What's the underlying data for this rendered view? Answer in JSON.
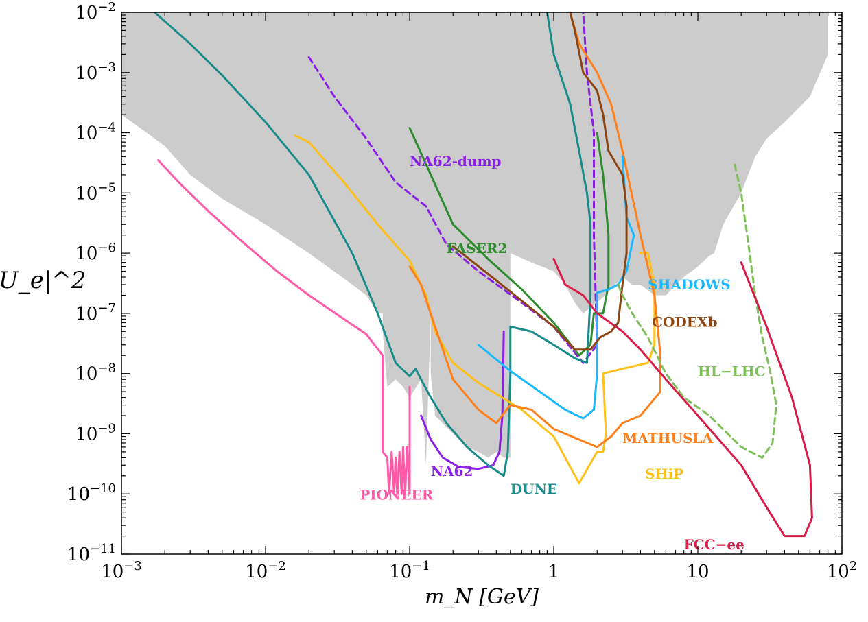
{
  "chart_data": {
    "type": "line",
    "title": "",
    "xlabel": "m_N  [GeV]",
    "ylabel": "|U_e|^2",
    "xscale": "log",
    "yscale": "log",
    "xlim": [
      0.001,
      100
    ],
    "ylim": [
      1e-11,
      0.01
    ],
    "grid": false,
    "x_ticks": [
      {
        "value": 0.001,
        "base": "10",
        "exp": "−3"
      },
      {
        "value": 0.01,
        "base": "10",
        "exp": "−2"
      },
      {
        "value": 0.1,
        "base": "10",
        "exp": "−1"
      },
      {
        "value": 1,
        "base": "1",
        "exp": ""
      },
      {
        "value": 10,
        "base": "10",
        "exp": ""
      },
      {
        "value": 100,
        "base": "10",
        "exp": "2"
      }
    ],
    "y_ticks": [
      {
        "value": 0.01,
        "base": "10",
        "exp": "−2"
      },
      {
        "value": 0.001,
        "base": "10",
        "exp": "−3"
      },
      {
        "value": 0.0001,
        "base": "10",
        "exp": "−4"
      },
      {
        "value": 1e-05,
        "base": "10",
        "exp": "−5"
      },
      {
        "value": 1e-06,
        "base": "10",
        "exp": "−6"
      },
      {
        "value": 1e-07,
        "base": "10",
        "exp": "−7"
      },
      {
        "value": 1e-08,
        "base": "10",
        "exp": "−8"
      },
      {
        "value": 1e-09,
        "base": "10",
        "exp": "−9"
      },
      {
        "value": 1e-10,
        "base": "10",
        "exp": "−10"
      },
      {
        "value": 1e-11,
        "base": "10",
        "exp": "−11"
      }
    ],
    "excluded_region": {
      "color": "#cccccc",
      "boundary": [
        [
          0.001,
          0.01
        ],
        [
          80,
          0.01
        ],
        [
          80,
          0.002
        ],
        [
          60,
          0.0004
        ],
        [
          40,
          0.00015
        ],
        [
          30,
          8e-05
        ],
        [
          25,
          4e-05
        ],
        [
          20,
          1e-05
        ],
        [
          15,
          3e-06
        ],
        [
          13,
          1e-06
        ],
        [
          12,
          9e-07
        ],
        [
          10,
          6e-07
        ],
        [
          8,
          4e-07
        ],
        [
          6,
          2e-07
        ],
        [
          5,
          2e-07
        ],
        [
          4,
          3e-07
        ],
        [
          3.5,
          3e-07
        ],
        [
          3,
          4e-07
        ],
        [
          2.5,
          2.5e-07
        ],
        [
          2,
          1.5e-07
        ],
        [
          1.6,
          1e-07
        ],
        [
          1.4,
          1.5e-07
        ],
        [
          1.2,
          3e-07
        ],
        [
          1.0,
          5e-07
        ],
        [
          0.7,
          7e-07
        ],
        [
          0.5,
          1e-06
        ],
        [
          0.5,
          2e-07
        ],
        [
          0.5,
          4e-10
        ],
        [
          0.45,
          4e-10
        ],
        [
          0.4,
          5e-10
        ],
        [
          0.35,
          4e-10
        ],
        [
          0.3,
          5e-10
        ],
        [
          0.25,
          6e-10
        ],
        [
          0.2,
          1e-09
        ],
        [
          0.15,
          2e-09
        ],
        [
          0.14,
          1e-08
        ],
        [
          0.14,
          1e-07
        ],
        [
          0.13,
          3e-10
        ],
        [
          0.12,
          8e-09
        ],
        [
          0.1,
          4e-09
        ],
        [
          0.09,
          6e-09
        ],
        [
          0.08,
          8e-09
        ],
        [
          0.07,
          6e-09
        ],
        [
          0.065,
          5e-08
        ],
        [
          0.065,
          1e-07
        ],
        [
          0.06,
          1e-07
        ],
        [
          0.05,
          2e-07
        ],
        [
          0.04,
          3e-07
        ],
        [
          0.02,
          1e-06
        ],
        [
          0.01,
          3e-06
        ],
        [
          0.005,
          8e-06
        ],
        [
          0.003,
          2e-05
        ],
        [
          0.002,
          6e-05
        ],
        [
          0.0015,
          0.0001
        ],
        [
          0.001,
          0.0002
        ],
        [
          0.001,
          0.01
        ]
      ]
    },
    "series": [
      {
        "name": "PIONEER",
        "color": "#ff5aa8",
        "dashed": false,
        "label_at": [
          0.045,
          8e-11
        ],
        "points": [
          [
            0.0018,
            3.5e-05
          ],
          [
            0.0025,
            1.5e-05
          ],
          [
            0.004,
            5e-06
          ],
          [
            0.007,
            1.5e-06
          ],
          [
            0.012,
            5e-07
          ],
          [
            0.02,
            2e-07
          ],
          [
            0.035,
            8e-08
          ],
          [
            0.05,
            4.5e-08
          ],
          [
            0.065,
            2e-08
          ],
          [
            0.065,
            5e-10
          ],
          [
            0.07,
            4e-10
          ],
          [
            0.072,
            1e-10
          ],
          [
            0.075,
            5e-10
          ],
          [
            0.078,
            1e-10
          ],
          [
            0.08,
            4e-10
          ],
          [
            0.082,
            1e-10
          ],
          [
            0.085,
            5e-10
          ],
          [
            0.088,
            1e-10
          ],
          [
            0.09,
            6e-10
          ],
          [
            0.093,
            1e-10
          ],
          [
            0.096,
            6e-10
          ],
          [
            0.1,
            1e-10
          ],
          [
            0.1,
            7e-10
          ],
          [
            0.1,
            6e-09
          ]
        ]
      },
      {
        "name": "NA62",
        "color": "#8b1fe6",
        "dashed": false,
        "label_at": [
          0.14,
          2e-10
        ],
        "points": [
          [
            0.12,
            2e-09
          ],
          [
            0.14,
            8e-10
          ],
          [
            0.17,
            4e-10
          ],
          [
            0.22,
            2.8e-10
          ],
          [
            0.3,
            2.6e-10
          ],
          [
            0.38,
            3e-10
          ],
          [
            0.42,
            5e-10
          ],
          [
            0.44,
            2e-09
          ],
          [
            0.45,
            5e-08
          ]
        ]
      },
      {
        "name": "NA62-dump",
        "color": "#8b1fe6",
        "dashed": true,
        "label_at": [
          0.1,
          2.8e-05
        ],
        "points": [
          [
            0.02,
            0.0018
          ],
          [
            0.03,
            0.0004
          ],
          [
            0.05,
            8e-05
          ],
          [
            0.08,
            1.5e-05
          ],
          [
            0.13,
            6e-06
          ],
          [
            0.18,
            1.4e-06
          ],
          [
            0.3,
            5e-07
          ],
          [
            0.6,
            1.5e-07
          ],
          [
            1.0,
            6e-08
          ],
          [
            1.6,
            1.5e-08
          ],
          [
            2.0,
            3e-08
          ],
          [
            1.9,
            2e-06
          ],
          [
            1.9,
            0.0001
          ],
          [
            1.7,
            0.001
          ],
          [
            1.6,
            0.01
          ]
        ]
      },
      {
        "name": "DUNE",
        "color": "#1a8b8b",
        "dashed": false,
        "label_at": [
          0.5,
          1e-10
        ],
        "points": [
          [
            0.0017,
            0.01
          ],
          [
            0.003,
            0.003
          ],
          [
            0.005,
            0.0009
          ],
          [
            0.01,
            0.00015
          ],
          [
            0.02,
            2e-05
          ],
          [
            0.04,
            1e-06
          ],
          [
            0.06,
            1e-07
          ],
          [
            0.08,
            1.5e-08
          ],
          [
            0.1,
            9e-09
          ],
          [
            0.11,
            1.2e-08
          ],
          [
            0.12,
            8e-09
          ],
          [
            0.14,
            4e-09
          ],
          [
            0.18,
            1.5e-09
          ],
          [
            0.25,
            6e-10
          ],
          [
            0.35,
            3e-10
          ],
          [
            0.45,
            2e-10
          ],
          [
            0.48,
            5e-10
          ],
          [
            0.5,
            1e-08
          ],
          [
            0.5,
            3e-08
          ],
          [
            0.5,
            6e-08
          ],
          [
            0.7,
            5e-08
          ],
          [
            1.0,
            3e-08
          ],
          [
            1.4,
            1.8e-08
          ],
          [
            1.7,
            1.5e-08
          ],
          [
            1.8,
            2e-07
          ],
          [
            1.8,
            3e-06
          ],
          [
            1.7,
            1e-05
          ],
          [
            1.5,
            5e-05
          ],
          [
            1.3,
            0.0003
          ],
          [
            1.0,
            0.002
          ],
          [
            0.9,
            0.01
          ]
        ]
      },
      {
        "name": "FASER2",
        "color": "#2e8b2e",
        "dashed": false,
        "label_at": [
          0.18,
          1e-06
        ],
        "points": [
          [
            0.1,
            0.00012
          ],
          [
            0.13,
            3e-05
          ],
          [
            0.2,
            3e-06
          ],
          [
            0.35,
            8e-07
          ],
          [
            0.6,
            2.5e-07
          ],
          [
            1.0,
            7e-08
          ],
          [
            1.5,
            2e-08
          ],
          [
            1.8,
            3e-08
          ],
          [
            1.9,
            1e-07
          ],
          [
            2.2,
            1e-07
          ],
          [
            2.4,
            3e-07
          ],
          [
            2.4,
            2e-06
          ],
          [
            2.2,
            2e-05
          ],
          [
            2.0,
            0.0001
          ]
        ]
      },
      {
        "name": "SHiP",
        "color": "#ffc01a",
        "dashed": false,
        "label_at": [
          4.3,
          1.8e-10
        ],
        "points": [
          [
            0.016,
            9e-05
          ],
          [
            0.02,
            7e-05
          ],
          [
            0.035,
            1.5e-05
          ],
          [
            0.06,
            3e-06
          ],
          [
            0.1,
            7.5e-07
          ],
          [
            0.13,
            2e-07
          ],
          [
            0.15,
            5e-08
          ],
          [
            0.2,
            1.5e-08
          ],
          [
            0.3,
            7e-09
          ],
          [
            0.6,
            2.5e-09
          ],
          [
            1.0,
            9e-10
          ],
          [
            1.5,
            1.5e-10
          ],
          [
            2.0,
            5e-10
          ],
          [
            2.2,
            5e-10
          ],
          [
            2.3,
            1e-09
          ],
          [
            2.2,
            1e-08
          ],
          [
            3.0,
            1.2e-08
          ],
          [
            4.5,
            1.5e-08
          ],
          [
            5.0,
            3e-08
          ],
          [
            5.0,
            3e-07
          ],
          [
            4.5,
            1e-06
          ],
          [
            4.0,
            1e-06
          ]
        ]
      },
      {
        "name": "MATHUSLA",
        "color": "#ff7f1a",
        "dashed": false,
        "label_at": [
          3,
          7e-10
        ],
        "points": [
          [
            0.1,
            6e-07
          ],
          [
            0.12,
            3e-07
          ],
          [
            0.15,
            6e-08
          ],
          [
            0.2,
            8e-09
          ],
          [
            0.3,
            2.5e-09
          ],
          [
            0.4,
            1.5e-09
          ],
          [
            0.5,
            3e-09
          ],
          [
            0.7,
            2.5e-09
          ],
          [
            1.0,
            1.2e-09
          ],
          [
            1.5,
            8e-10
          ],
          [
            2.0,
            6e-10
          ],
          [
            2.5,
            9e-10
          ],
          [
            3.0,
            1.5e-09
          ],
          [
            4.0,
            2e-09
          ],
          [
            5.5,
            5e-09
          ],
          [
            5.5,
            2e-08
          ],
          [
            5.0,
            2e-07
          ],
          [
            4.0,
            2e-06
          ],
          [
            3.0,
            5e-05
          ],
          [
            2.5,
            0.0003
          ],
          [
            2.0,
            0.001
          ],
          [
            1.5,
            0.003
          ],
          [
            1.3,
            0.01
          ]
        ]
      },
      {
        "name": "SHADOWS",
        "color": "#1ab8ff",
        "dashed": false,
        "label_at": [
          4.5,
          2.5e-07
        ],
        "points": [
          [
            0.3,
            3e-08
          ],
          [
            0.5,
            1.1e-08
          ],
          [
            0.8,
            5e-09
          ],
          [
            1.2,
            2.5e-09
          ],
          [
            1.6,
            1.8e-09
          ],
          [
            1.9,
            2.5e-09
          ],
          [
            2.0,
            1e-08
          ],
          [
            2.0,
            2.2e-07
          ],
          [
            2.4,
            2.5e-07
          ],
          [
            2.8,
            3e-07
          ],
          [
            3.2,
            5e-07
          ],
          [
            3.6,
            2e-06
          ],
          [
            3.2,
            4e-06
          ],
          [
            3.0,
            4e-05
          ]
        ]
      },
      {
        "name": "CODEXb",
        "color": "#8b4513",
        "dashed": false,
        "label_at": [
          4.8,
          6e-08
        ],
        "points": [
          [
            0.2,
            1.3e-06
          ],
          [
            0.4,
            3.5e-07
          ],
          [
            0.7,
            1.2e-07
          ],
          [
            1.0,
            6e-08
          ],
          [
            1.4,
            2.5e-08
          ],
          [
            1.8,
            2.5e-08
          ],
          [
            2.1,
            4e-08
          ],
          [
            2.5,
            5e-08
          ],
          [
            2.8,
            7e-08
          ],
          [
            3.0,
            3e-07
          ],
          [
            3.2,
            1e-06
          ],
          [
            3.2,
            6e-06
          ],
          [
            3.0,
            2e-05
          ],
          [
            2.4,
            5e-05
          ],
          [
            2.2,
            0.0002
          ],
          [
            2.0,
            0.0005
          ],
          [
            1.6,
            0.001
          ],
          [
            1.4,
            0.005
          ],
          [
            1.3,
            0.01
          ]
        ]
      },
      {
        "name": "HL−LHC",
        "color": "#7fbf5a",
        "dashed": true,
        "label_at": [
          10,
          9e-09
        ],
        "points": [
          [
            2.8,
            3e-07
          ],
          [
            3.0,
            2e-07
          ],
          [
            3.5,
            1e-07
          ],
          [
            4.5,
            4e-08
          ],
          [
            6.0,
            1e-08
          ],
          [
            8.0,
            4e-09
          ],
          [
            12.0,
            2e-09
          ],
          [
            20.0,
            6e-10
          ],
          [
            28.0,
            4e-10
          ],
          [
            33.0,
            7e-10
          ],
          [
            35.0,
            3e-09
          ],
          [
            32.0,
            1e-08
          ],
          [
            28.0,
            4e-08
          ],
          [
            25.0,
            2e-07
          ],
          [
            22.0,
            2e-06
          ],
          [
            20.0,
            1e-05
          ],
          [
            18.0,
            3e-05
          ]
        ]
      },
      {
        "name": "FCC−ee",
        "color": "#d81b47",
        "dashed": false,
        "label_at": [
          8,
          1.2e-11
        ],
        "points": [
          [
            1.0,
            8e-07
          ],
          [
            1.2,
            3e-07
          ],
          [
            1.6,
            2e-07
          ],
          [
            2.0,
            1e-07
          ],
          [
            3.0,
            5e-08
          ],
          [
            4.0,
            2.5e-08
          ],
          [
            6.0,
            8e-09
          ],
          [
            10.0,
            2e-09
          ],
          [
            20.0,
            3e-10
          ],
          [
            30.0,
            6e-11
          ],
          [
            40.0,
            2e-11
          ],
          [
            55.0,
            2e-11
          ],
          [
            62.0,
            4e-11
          ],
          [
            60.0,
            3e-10
          ],
          [
            45.0,
            4e-09
          ],
          [
            30.0,
            6e-08
          ],
          [
            20.0,
            7e-07
          ]
        ]
      }
    ]
  }
}
